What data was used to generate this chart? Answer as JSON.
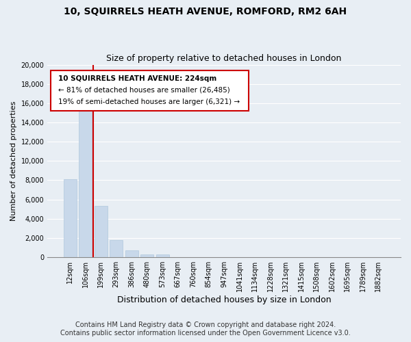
{
  "title": "10, SQUIRRELS HEATH AVENUE, ROMFORD, RM2 6AH",
  "subtitle": "Size of property relative to detached houses in London",
  "xlabel": "Distribution of detached houses by size in London",
  "ylabel": "Number of detached properties",
  "bar_color": "#c8d8ea",
  "bar_edge_color": "#b0c8dc",
  "vline_color": "#cc0000",
  "annotation_title": "10 SQUIRRELS HEATH AVENUE: 224sqm",
  "annotation_line1": "← 81% of detached houses are smaller (26,485)",
  "annotation_line2": "19% of semi-detached houses are larger (6,321) →",
  "annotation_box_color": "#ffffff",
  "annotation_box_edge": "#cc0000",
  "categories": [
    "12sqm",
    "106sqm",
    "199sqm",
    "293sqm",
    "386sqm",
    "480sqm",
    "573sqm",
    "667sqm",
    "760sqm",
    "854sqm",
    "947sqm",
    "1041sqm",
    "1134sqm",
    "1228sqm",
    "1321sqm",
    "1415sqm",
    "1508sqm",
    "1602sqm",
    "1695sqm",
    "1789sqm",
    "1882sqm"
  ],
  "values": [
    8100,
    16500,
    5300,
    1750,
    750,
    300,
    270,
    0,
    0,
    0,
    0,
    0,
    0,
    0,
    0,
    0,
    0,
    0,
    0,
    0,
    0
  ],
  "ylim": [
    0,
    20000
  ],
  "yticks": [
    0,
    2000,
    4000,
    6000,
    8000,
    10000,
    12000,
    14000,
    16000,
    18000,
    20000
  ],
  "background_color": "#e8eef4",
  "grid_color": "#ffffff",
  "footer1": "Contains HM Land Registry data © Crown copyright and database right 2024.",
  "footer2": "Contains public sector information licensed under the Open Government Licence v3.0.",
  "title_fontsize": 10,
  "subtitle_fontsize": 9,
  "xlabel_fontsize": 9,
  "ylabel_fontsize": 8,
  "tick_fontsize": 7,
  "footer_fontsize": 7
}
